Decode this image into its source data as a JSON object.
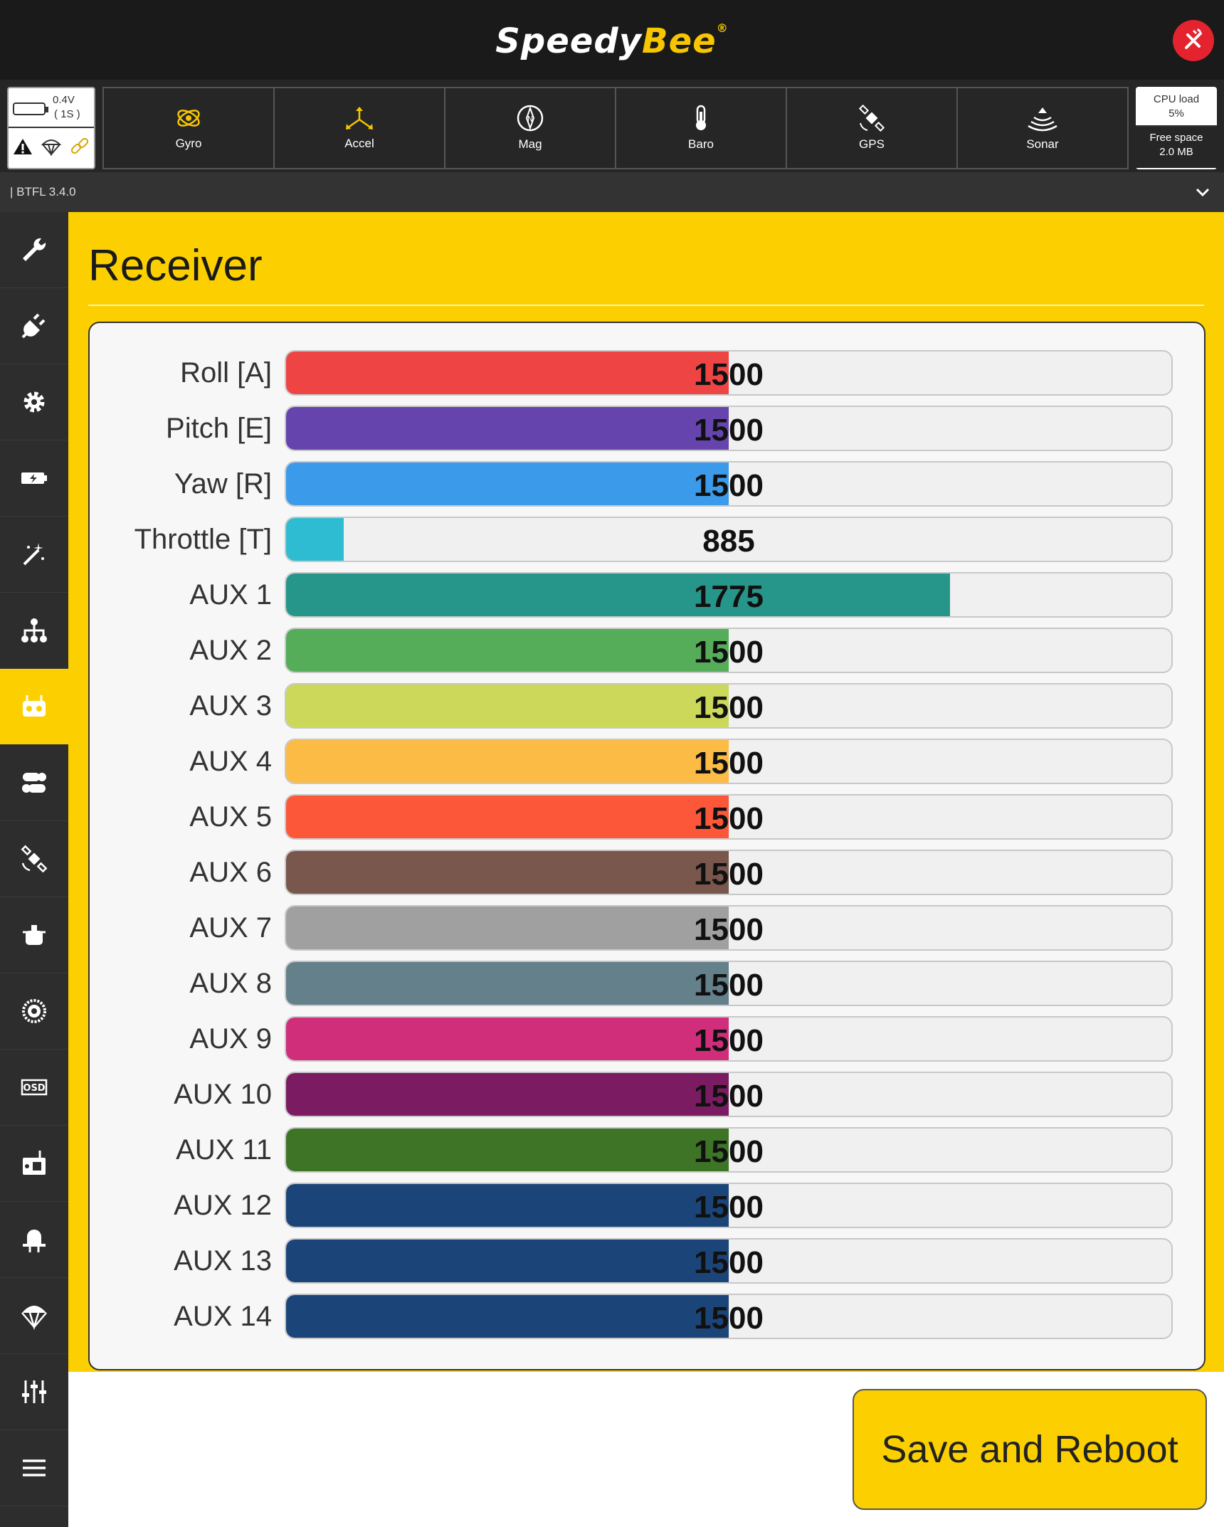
{
  "header": {
    "logo_part1": "Speedy",
    "logo_part2": "Bee",
    "logo_mark": "®",
    "disconnect_icon": "disconnect-plug-icon"
  },
  "battery": {
    "voltage": "0.4V",
    "cells": "( 1S )"
  },
  "sensors": [
    {
      "name": "Gyro",
      "icon": "gyro-icon",
      "active": true
    },
    {
      "name": "Accel",
      "icon": "accel-icon",
      "active": true
    },
    {
      "name": "Mag",
      "icon": "compass-icon",
      "active": false
    },
    {
      "name": "Baro",
      "icon": "thermometer-icon",
      "active": false
    },
    {
      "name": "GPS",
      "icon": "satellite-icon",
      "active": false
    },
    {
      "name": "Sonar",
      "icon": "sonar-icon",
      "active": false
    }
  ],
  "cpu": {
    "load_label": "CPU load",
    "load_value": "5%",
    "space_label": "Free space",
    "space_value": "2.0 MB"
  },
  "firmware": {
    "version": "| BTFL 3.4.0"
  },
  "sidebar": [
    "wrench-icon",
    "plug-icon",
    "gear-icon",
    "battery-icon",
    "magic-wand-icon",
    "hierarchy-icon",
    "receiver-icon",
    "modes-icon",
    "satellite-icon",
    "motor-icon",
    "propeller-icon",
    "osd-icon",
    "vtx-icon",
    "blackbox-icon",
    "parachute-icon",
    "sliders-icon",
    "menu-icon"
  ],
  "page": {
    "title": "Receiver"
  },
  "channels": [
    {
      "label": "Roll [A]",
      "value": "1500",
      "fraction": 0.5,
      "color": "#ef4444"
    },
    {
      "label": "Pitch [E]",
      "value": "1500",
      "fraction": 0.5,
      "color": "#6644ad"
    },
    {
      "label": "Yaw [R]",
      "value": "1500",
      "fraction": 0.5,
      "color": "#3b9bea"
    },
    {
      "label": "Throttle [T]",
      "value": "885",
      "fraction": 0.065,
      "color": "#2ebcd2"
    },
    {
      "label": "AUX 1",
      "value": "1775",
      "fraction": 0.75,
      "color": "#26968b"
    },
    {
      "label": "AUX 2",
      "value": "1500",
      "fraction": 0.5,
      "color": "#55ad5a"
    },
    {
      "label": "AUX 3",
      "value": "1500",
      "fraction": 0.5,
      "color": "#cbd85a"
    },
    {
      "label": "AUX 4",
      "value": "1500",
      "fraction": 0.5,
      "color": "#fbbb45"
    },
    {
      "label": "AUX 5",
      "value": "1500",
      "fraction": 0.5,
      "color": "#fd573a"
    },
    {
      "label": "AUX 6",
      "value": "1500",
      "fraction": 0.5,
      "color": "#79574c"
    },
    {
      "label": "AUX 7",
      "value": "1500",
      "fraction": 0.5,
      "color": "#a0a0a0"
    },
    {
      "label": "AUX 8",
      "value": "1500",
      "fraction": 0.5,
      "color": "#64808b"
    },
    {
      "label": "AUX 9",
      "value": "1500",
      "fraction": 0.5,
      "color": "#d02d7b"
    },
    {
      "label": "AUX 10",
      "value": "1500",
      "fraction": 0.5,
      "color": "#7b1c62"
    },
    {
      "label": "AUX 11",
      "value": "1500",
      "fraction": 0.5,
      "color": "#3e7426"
    },
    {
      "label": "AUX 12",
      "value": "1500",
      "fraction": 0.5,
      "color": "#1b4578"
    },
    {
      "label": "AUX 13",
      "value": "1500",
      "fraction": 0.5,
      "color": "#1b4578"
    },
    {
      "label": "AUX 14",
      "value": "1500",
      "fraction": 0.5,
      "color": "#1b4578"
    }
  ],
  "footer": {
    "save_label": "Save and Reboot"
  }
}
